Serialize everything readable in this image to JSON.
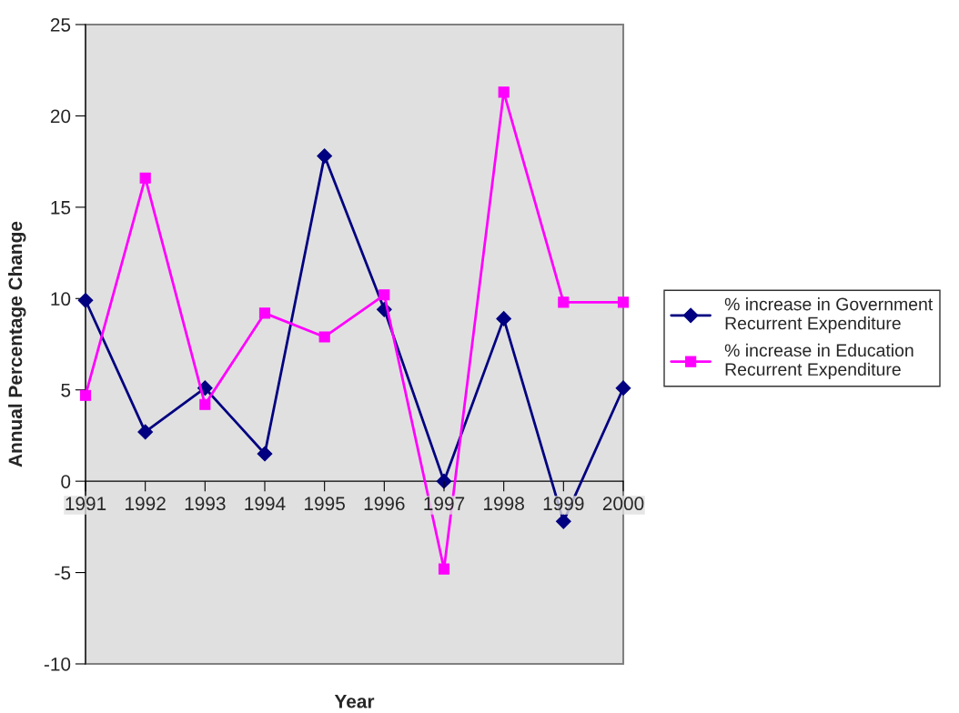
{
  "chart_data": {
    "type": "line",
    "xlabel": "Year",
    "ylabel": "Annual Percentage Change",
    "categories": [
      "1991",
      "1992",
      "1993",
      "1994",
      "1995",
      "1996",
      "1997",
      "1998",
      "1999",
      "2000"
    ],
    "series": [
      {
        "name": "% increase in Government Recurrent Expenditure",
        "color": "#000080",
        "marker": "diamond",
        "values": [
          9.9,
          2.7,
          5.1,
          1.5,
          17.8,
          9.4,
          0,
          8.9,
          -2.2,
          5.1
        ]
      },
      {
        "name": "% increase in Education Recurrent Expenditure",
        "color": "#ff00ff",
        "marker": "square",
        "values": [
          4.7,
          16.6,
          4.2,
          9.2,
          7.9,
          10.2,
          -4.8,
          21.3,
          9.8,
          9.8
        ]
      }
    ],
    "ylim": [
      -10,
      25
    ],
    "yticks": [
      -10,
      -5,
      0,
      5,
      10,
      15,
      20,
      25
    ],
    "grid": false,
    "legend": "right",
    "line_style": "solid"
  }
}
